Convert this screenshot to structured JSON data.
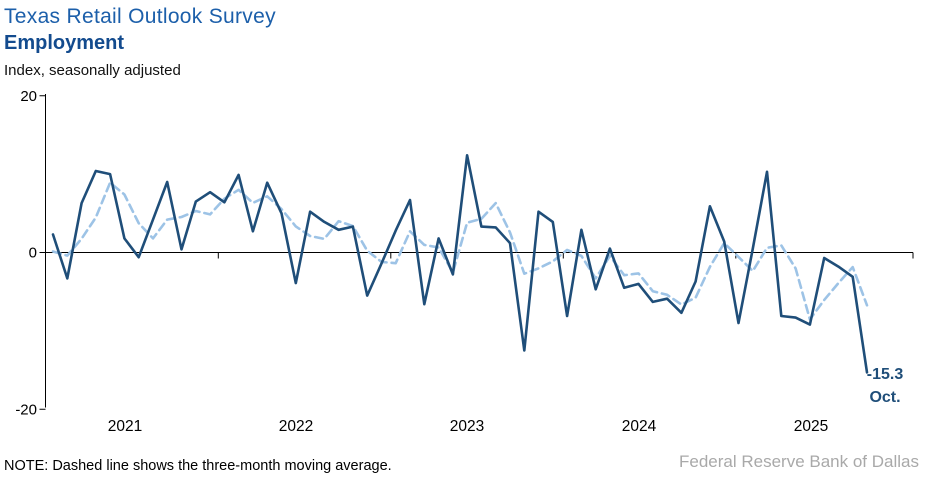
{
  "header": {
    "title": "Texas Retail Outlook Survey",
    "subtitle": "Employment",
    "units_label": "Index, seasonally adjusted"
  },
  "footer": {
    "note": "NOTE: Dashed line shows the three-month moving average.",
    "source": "Federal Reserve Bank of Dallas"
  },
  "annotation": {
    "value": "-15.3",
    "month": "Oct."
  },
  "colors": {
    "title_blue": "#1C5FAA",
    "subtitle_blue": "#134B8E",
    "line_dark_blue": "#1F4E79",
    "line_light_blue": "#9DC3E6",
    "axis_black": "#000000",
    "source_gray": "#A9A9A9"
  },
  "chart_data": {
    "type": "line",
    "title": "Texas Retail Outlook Survey — Employment",
    "xlabel": "",
    "ylabel": "Index, seasonally adjusted",
    "ylim": [
      -20,
      20
    ],
    "grid": false,
    "legend": "none (dashed line explained in footnote)",
    "y_ticks": [
      {
        "label": "20",
        "value": 20
      },
      {
        "label": "0",
        "value": 0
      },
      {
        "label": "-20",
        "value": -20
      }
    ],
    "x_ticks": [
      {
        "label": "2021"
      },
      {
        "label": "2022"
      },
      {
        "label": "2023"
      },
      {
        "label": "2024"
      },
      {
        "label": "2025"
      }
    ],
    "months": [
      "2021-01",
      "2021-02",
      "2021-03",
      "2021-04",
      "2021-05",
      "2021-06",
      "2021-07",
      "2021-08",
      "2021-09",
      "2021-10",
      "2021-11",
      "2021-12",
      "2022-01",
      "2022-02",
      "2022-03",
      "2022-04",
      "2022-05",
      "2022-06",
      "2022-07",
      "2022-08",
      "2022-09",
      "2022-10",
      "2022-11",
      "2022-12",
      "2023-01",
      "2023-02",
      "2023-03",
      "2023-04",
      "2023-05",
      "2023-06",
      "2023-07",
      "2023-08",
      "2023-09",
      "2023-10",
      "2023-11",
      "2023-12",
      "2024-01",
      "2024-02",
      "2024-03",
      "2024-04",
      "2024-05",
      "2024-06",
      "2024-07",
      "2024-08",
      "2024-09",
      "2024-10",
      "2024-11",
      "2024-12",
      "2025-01",
      "2025-02",
      "2025-03",
      "2025-04",
      "2025-05",
      "2025-06",
      "2025-07",
      "2025-08",
      "2025-09",
      "2025-10"
    ],
    "series": [
      {
        "name": "Employment index (monthly)",
        "style": "solid",
        "color": "#1F4E79",
        "values": [
          2.3,
          -3.3,
          6.3,
          10.4,
          10.0,
          1.8,
          -0.6,
          4.2,
          9.0,
          0.4,
          6.5,
          7.7,
          6.4,
          9.9,
          2.7,
          8.9,
          5.0,
          -3.9,
          5.2,
          3.9,
          2.9,
          3.3,
          -5.5,
          -1.4,
          2.8,
          6.7,
          -6.6,
          1.8,
          -2.8,
          12.4,
          3.3,
          3.2,
          1.2,
          -12.5,
          5.2,
          3.9,
          -8.1,
          2.9,
          -4.7,
          0.5,
          -4.5,
          -4.0,
          -6.3,
          -5.9,
          -7.7,
          -3.7,
          5.9,
          1.4,
          -9.0,
          0.5,
          10.3,
          -8.1,
          -8.3,
          -9.2,
          -0.7,
          -1.8,
          -3.1,
          -15.3
        ]
      },
      {
        "name": "Three-month moving average",
        "style": "dashed",
        "color": "#9DC3E6",
        "computed_from": "trailing 3-month mean of monthly values",
        "pre_window_values": [
          -1.7,
          -0.2
        ]
      }
    ],
    "last_point": {
      "month": "2025-10",
      "value": -15.3,
      "label": "-15.3 Oct."
    }
  }
}
